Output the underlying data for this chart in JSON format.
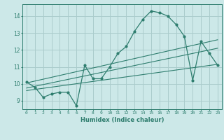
{
  "title": "",
  "xlabel": "Humidex (Indice chaleur)",
  "ylabel": "",
  "background_color": "#cce8e8",
  "grid_color": "#aacccc",
  "line_color": "#2e7d6e",
  "xlim": [
    -0.5,
    23.5
  ],
  "ylim": [
    8.5,
    14.7
  ],
  "xticks": [
    0,
    1,
    2,
    3,
    4,
    5,
    6,
    7,
    8,
    9,
    10,
    11,
    12,
    13,
    14,
    15,
    16,
    17,
    18,
    19,
    20,
    21,
    22,
    23
  ],
  "yticks": [
    9,
    10,
    11,
    12,
    13,
    14
  ],
  "curve_x": [
    0,
    1,
    2,
    3,
    4,
    5,
    6,
    7,
    8,
    9,
    10,
    11,
    12,
    13,
    14,
    15,
    16,
    17,
    18,
    19,
    20,
    21,
    22,
    23
  ],
  "curve_y": [
    10.1,
    9.8,
    9.2,
    9.4,
    9.5,
    9.5,
    8.7,
    11.1,
    10.3,
    10.3,
    11.0,
    11.8,
    12.2,
    13.1,
    13.8,
    14.3,
    14.2,
    14.0,
    13.5,
    12.8,
    10.2,
    12.5,
    11.8,
    11.1
  ],
  "reg_line1": [
    [
      0,
      23
    ],
    [
      10.05,
      12.6
    ]
  ],
  "reg_line2": [
    [
      0,
      23
    ],
    [
      9.75,
      12.1
    ]
  ],
  "reg_line3": [
    [
      0,
      23
    ],
    [
      9.6,
      11.15
    ]
  ]
}
